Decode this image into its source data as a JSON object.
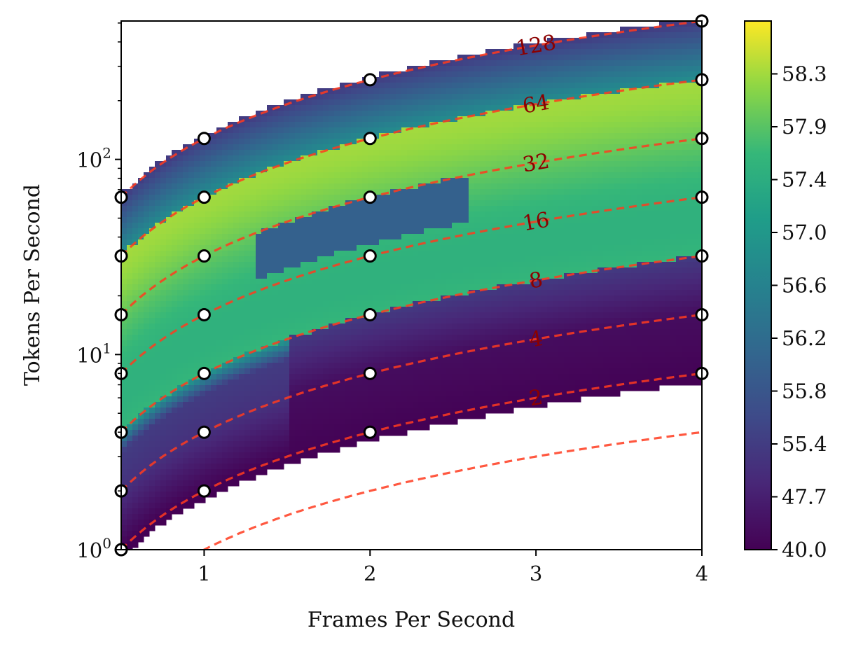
{
  "chart_data": {
    "type": "heatmap",
    "xlabel": "Frames Per Second",
    "ylabel": "Tokens Per Second",
    "xlim": [
      0.5,
      4
    ],
    "ylim": [
      1,
      512
    ],
    "yscale": "log",
    "x_ticks": [
      {
        "value": 1,
        "label": "1"
      },
      {
        "value": 2,
        "label": "2"
      },
      {
        "value": 3,
        "label": "3"
      },
      {
        "value": 4,
        "label": "4"
      }
    ],
    "y_ticks": [
      {
        "value": 1,
        "base": "10",
        "exp": "0"
      },
      {
        "value": 10,
        "base": "10",
        "exp": "1"
      },
      {
        "value": 100,
        "base": "10",
        "exp": "2"
      }
    ],
    "colorbar": {
      "range": [
        40.0,
        58.7
      ],
      "ticks": [
        "40.0",
        "47.7",
        "55.4",
        "55.8",
        "56.2",
        "56.6",
        "57.0",
        "57.4",
        "57.9",
        "58.3"
      ],
      "tick_values": [
        40.0,
        47.7,
        55.4,
        55.8,
        56.2,
        56.6,
        57.0,
        57.4,
        57.9,
        58.3
      ],
      "colormap": "viridis"
    },
    "contour_lines": [
      {
        "label": "2",
        "tokens_per_frame": 2,
        "label_x": 3.0
      },
      {
        "label": "4",
        "tokens_per_frame": 4,
        "label_x": 3.0
      },
      {
        "label": "8",
        "tokens_per_frame": 8,
        "label_x": 3.0
      },
      {
        "label": "16",
        "tokens_per_frame": 16,
        "label_x": 3.0
      },
      {
        "label": "32",
        "tokens_per_frame": 32,
        "label_x": 3.0
      },
      {
        "label": "64",
        "tokens_per_frame": 64,
        "label_x": 3.0
      },
      {
        "label": "128",
        "tokens_per_frame": 128,
        "label_x": 3.0
      }
    ],
    "sample_points": [
      {
        "x": 0.5,
        "y": 1
      },
      {
        "x": 0.5,
        "y": 2
      },
      {
        "x": 0.5,
        "y": 4
      },
      {
        "x": 0.5,
        "y": 8
      },
      {
        "x": 0.5,
        "y": 16
      },
      {
        "x": 0.5,
        "y": 32
      },
      {
        "x": 0.5,
        "y": 64
      },
      {
        "x": 1,
        "y": 2
      },
      {
        "x": 1,
        "y": 4
      },
      {
        "x": 1,
        "y": 8
      },
      {
        "x": 1,
        "y": 16
      },
      {
        "x": 1,
        "y": 32
      },
      {
        "x": 1,
        "y": 64
      },
      {
        "x": 1,
        "y": 128
      },
      {
        "x": 2,
        "y": 4
      },
      {
        "x": 2,
        "y": 8
      },
      {
        "x": 2,
        "y": 16
      },
      {
        "x": 2,
        "y": 32
      },
      {
        "x": 2,
        "y": 64
      },
      {
        "x": 2,
        "y": 128
      },
      {
        "x": 2,
        "y": 256
      },
      {
        "x": 4,
        "y": 8
      },
      {
        "x": 4,
        "y": 16
      },
      {
        "x": 4,
        "y": 32
      },
      {
        "x": 4,
        "y": 64
      },
      {
        "x": 4,
        "y": 128
      },
      {
        "x": 4,
        "y": 256
      },
      {
        "x": 4,
        "y": 512
      }
    ],
    "colors": {
      "contour_line": "#ff3b1f",
      "contour_label": "#8b0000",
      "viridis_low": "#440154",
      "viridis_high": "#fde725"
    }
  }
}
